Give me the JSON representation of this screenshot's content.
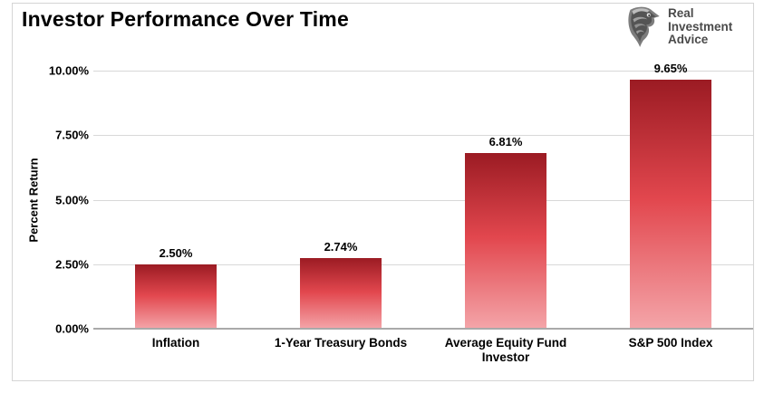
{
  "header": {
    "title": "Investor Performance Over Time",
    "logo": {
      "icon": "eagle-head-icon",
      "lines": [
        "Real",
        "Investment",
        "Advice"
      ]
    }
  },
  "chart_data": {
    "type": "bar",
    "title": "Investor Performance Over Time",
    "categories": [
      "Inflation",
      "1-Year Treasury Bonds",
      "Average Equity Fund Investor",
      "S&P 500 Index"
    ],
    "values": [
      2.5,
      2.74,
      6.81,
      9.65
    ],
    "data_labels": [
      "2.50%",
      "2.74%",
      "6.81%",
      "9.65%"
    ],
    "xlabel": "",
    "ylabel": "Percent Return",
    "ylim": [
      0,
      10
    ],
    "yticks": [
      0,
      2.5,
      5,
      7.5,
      10
    ],
    "ytick_labels": [
      "0.00%",
      "2.50%",
      "5.00%",
      "7.50%",
      "10.00%"
    ],
    "grid": true,
    "legend": "none",
    "bar_gradient": {
      "top": "#9b1b23",
      "mid": "#e2474e",
      "bottom": "#f4a5a9"
    }
  },
  "colors": {
    "gridline": "#d8d8d8",
    "axis_line": "#a9a9a9",
    "frame_border": "#d5d5d5",
    "text": "#000000",
    "logo_text": "#4a4a4a",
    "background": "#ffffff"
  }
}
